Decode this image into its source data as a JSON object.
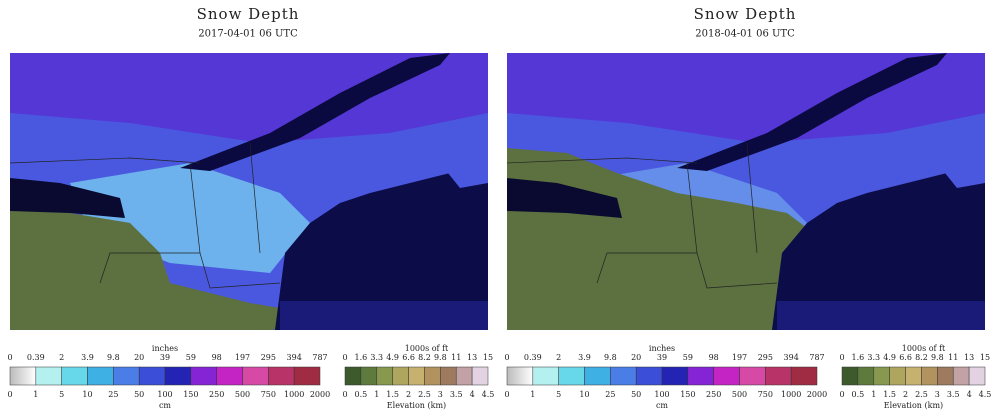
{
  "panels": [
    {
      "title": "Snow Depth",
      "date": "2017-04-01 06 UTC",
      "snow_legend": {
        "top_unit": "inches",
        "top_labels": [
          "0",
          "0.39",
          "2",
          "3.9",
          "9.8",
          "20",
          "39",
          "59",
          "98",
          "197",
          "295",
          "394",
          "787"
        ],
        "bottom_labels": [
          "0",
          "1",
          "5",
          "10",
          "25",
          "50",
          "100",
          "150",
          "250",
          "500",
          "750",
          "1000",
          "2000"
        ],
        "bottom_unit": "cm"
      },
      "elevation_legend": {
        "top_unit": "1000s of ft",
        "top_labels": [
          "0",
          "1.6",
          "3.3",
          "4.9",
          "6.6",
          "8.2",
          "9.8",
          "11",
          "13",
          "15"
        ],
        "bottom_labels": [
          "0",
          "0.5",
          "1",
          "1.5",
          "2",
          "2.5",
          "3",
          "3.5",
          "4",
          "4.5"
        ],
        "bottom_unit": "Elevation (km)"
      }
    },
    {
      "title": "Snow Depth",
      "date": "2018-04-01 06 UTC",
      "snow_legend": {
        "top_unit": "inches",
        "top_labels": [
          "0",
          "0.39",
          "2",
          "3.9",
          "9.8",
          "20",
          "39",
          "59",
          "98",
          "197",
          "295",
          "394",
          "787"
        ],
        "bottom_labels": [
          "0",
          "1",
          "5",
          "10",
          "25",
          "50",
          "100",
          "150",
          "250",
          "500",
          "750",
          "1000",
          "2000"
        ],
        "bottom_unit": "cm"
      },
      "elevation_legend": {
        "top_unit": "1000s of ft",
        "top_labels": [
          "0",
          "1.6",
          "3.3",
          "4.9",
          "6.6",
          "8.2",
          "9.8",
          "11",
          "13",
          "15"
        ],
        "bottom_labels": [
          "0",
          "0.5",
          "1",
          "1.5",
          "2",
          "2.5",
          "3",
          "3.5",
          "4",
          "4.5"
        ],
        "bottom_unit": "Elevation (km)"
      }
    }
  ]
}
